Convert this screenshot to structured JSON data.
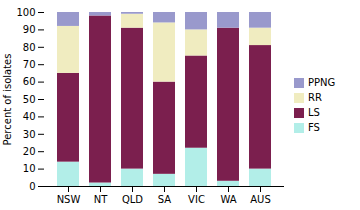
{
  "chart_data": {
    "type": "bar",
    "stacked": true,
    "categories": [
      "NSW",
      "NT",
      "QLD",
      "SA",
      "VIC",
      "WA",
      "AUS"
    ],
    "series": [
      {
        "name": "FS",
        "color": "#b2eee8",
        "values": [
          14,
          2,
          10,
          7,
          22,
          3,
          10
        ]
      },
      {
        "name": "LS",
        "color": "#7b1f4e",
        "values": [
          51,
          96,
          81,
          53,
          53,
          88,
          71
        ]
      },
      {
        "name": "RR",
        "color": "#f0ecc0",
        "values": [
          27,
          0,
          8,
          34,
          15,
          0,
          10
        ]
      },
      {
        "name": "PPNG",
        "color": "#9999cc",
        "values": [
          8,
          2,
          1,
          6,
          10,
          9,
          9
        ]
      }
    ],
    "ylabel": "Percent of isolates",
    "ylim": [
      0,
      100
    ],
    "yticks": [
      0,
      10,
      20,
      30,
      40,
      50,
      60,
      70,
      80,
      90,
      100
    ],
    "legend": "right"
  }
}
